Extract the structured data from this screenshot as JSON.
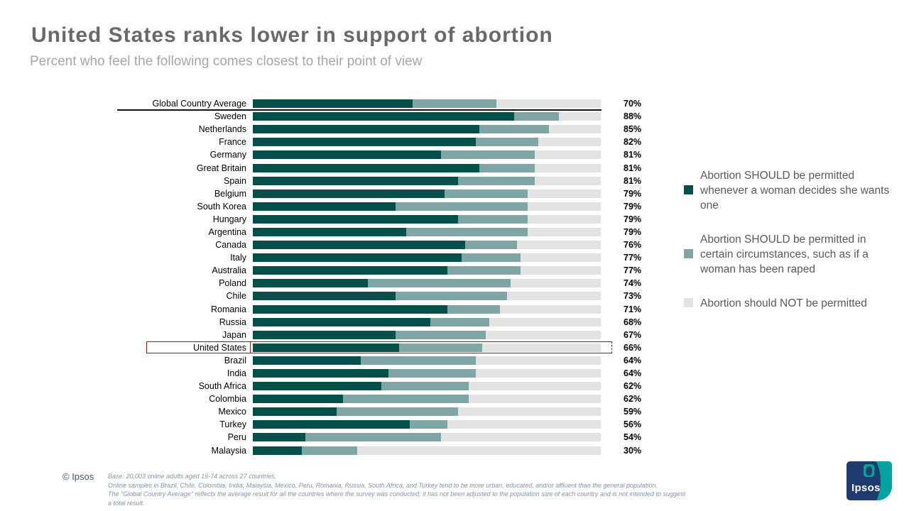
{
  "header": {
    "title": "United States ranks lower in support of abortion",
    "subtitle": "Percent who feel the following comes closest to their point of view"
  },
  "chart_data": {
    "type": "bar",
    "orientation": "horizontal",
    "stacked": true,
    "xlim": [
      0,
      100
    ],
    "grid": false,
    "legend_position": "right",
    "categories": [
      "Global Country Average",
      "Sweden",
      "Netherlands",
      "France",
      "Germany",
      "Great Britain",
      "Spain",
      "Belgium",
      "South Korea",
      "Hungary",
      "Argentina",
      "Canada",
      "Italy",
      "Australia",
      "Poland",
      "Chile",
      "Romania",
      "Russia",
      "Japan",
      "United States",
      "Brazil",
      "India",
      "South Africa",
      "Colombia",
      "Mexico",
      "Turkey",
      "Peru",
      "Malaysia"
    ],
    "series": [
      {
        "name": "Abortion SHOULD be permitted whenever a woman decides she wants one",
        "color": "#06504C",
        "values": [
          46,
          75,
          65,
          64,
          54,
          65,
          59,
          55,
          41,
          59,
          44,
          61,
          60,
          56,
          33,
          41,
          56,
          51,
          41,
          42,
          31,
          39,
          37,
          26,
          24,
          45,
          15,
          14
        ]
      },
      {
        "name": "Abortion SHOULD be permitted in certain circumstances, such as if a woman has been raped",
        "color": "#7FA6A4",
        "values": [
          24,
          13,
          20,
          18,
          27,
          16,
          22,
          24,
          38,
          20,
          35,
          15,
          17,
          21,
          41,
          32,
          15,
          17,
          26,
          24,
          33,
          25,
          25,
          36,
          35,
          11,
          39,
          16
        ]
      },
      {
        "name": "Abortion should NOT be permitted",
        "color": "#E2E3E2",
        "values": [
          30,
          12,
          15,
          18,
          19,
          19,
          19,
          21,
          21,
          21,
          21,
          24,
          23,
          23,
          26,
          27,
          29,
          32,
          33,
          34,
          36,
          36,
          38,
          38,
          41,
          44,
          46,
          70
        ]
      }
    ],
    "total_labels": [
      "70%",
      "88%",
      "85%",
      "82%",
      "81%",
      "81%",
      "81%",
      "79%",
      "79%",
      "79%",
      "79%",
      "76%",
      "77%",
      "77%",
      "74%",
      "73%",
      "71%",
      "68%",
      "67%",
      "66%",
      "64%",
      "64%",
      "62%",
      "62%",
      "59%",
      "56%",
      "54%",
      "30%"
    ],
    "separator_after": "Global Country Average",
    "highlight_category": "United States",
    "highlight_color": "#8F1D20"
  },
  "footer": {
    "copyright": "© Ipsos",
    "notes": [
      "Base: 20,003 online adults aged 16-74 across 27 countries.",
      "Online samples in Brazil, Chile, Colombia, India, Malaysia, Mexico, Peru, Romania, Russia, South Africa, and Turkey tend to be more urban, educated, and/or affluent than the general population.",
      "The \"Global Country Average\" reflects the average result for all the countries where the survey was conducted; it has not been adjusted to the population size of each country and is not intended to suggest",
      "a total result."
    ]
  },
  "logo": {
    "text": "Ipsos"
  }
}
